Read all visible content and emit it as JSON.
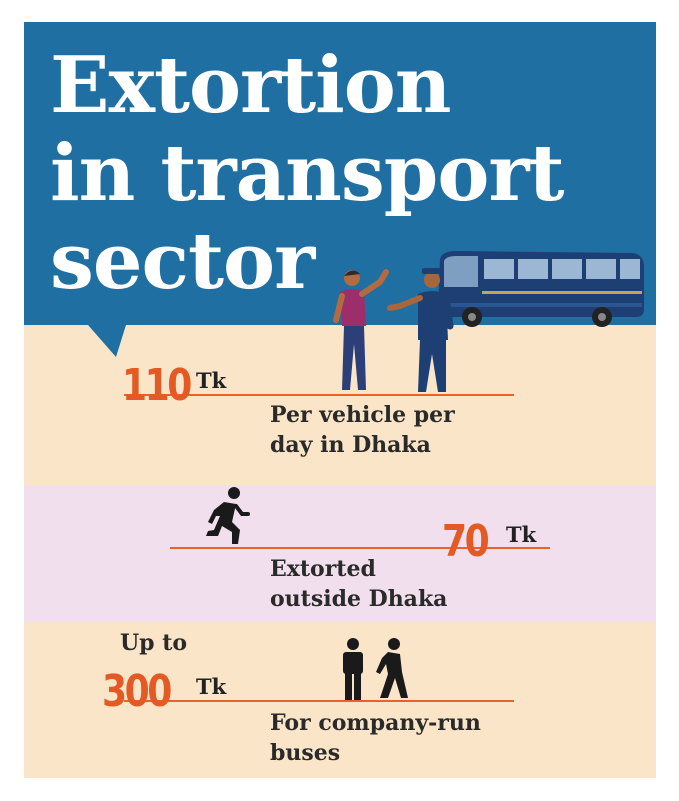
{
  "title": {
    "line1": "Extortion",
    "line2": "in transport",
    "line3": "sector"
  },
  "items": [
    {
      "value": "110",
      "unit": "Tk",
      "prefix": "",
      "desc_line1": "Per vehicle per",
      "desc_line2": "day in Dhaka"
    },
    {
      "value": "70",
      "unit": "Tk",
      "prefix": "",
      "desc_line1": "Extorted",
      "desc_line2": "outside Dhaka"
    },
    {
      "value": "300",
      "unit": "Tk",
      "prefix": "Up to",
      "desc_line1": "For company-run",
      "desc_line2": "buses"
    }
  ],
  "icons": [
    "bus-illustration",
    "handshake-illustration",
    "running-person-icon",
    "standing-person-icon",
    "walking-person-icon"
  ],
  "colors": {
    "header_blue": "#1f6fa3",
    "peach": "#fbe5c8",
    "lavender": "#f1dfee",
    "accent_orange": "#e35a25"
  }
}
